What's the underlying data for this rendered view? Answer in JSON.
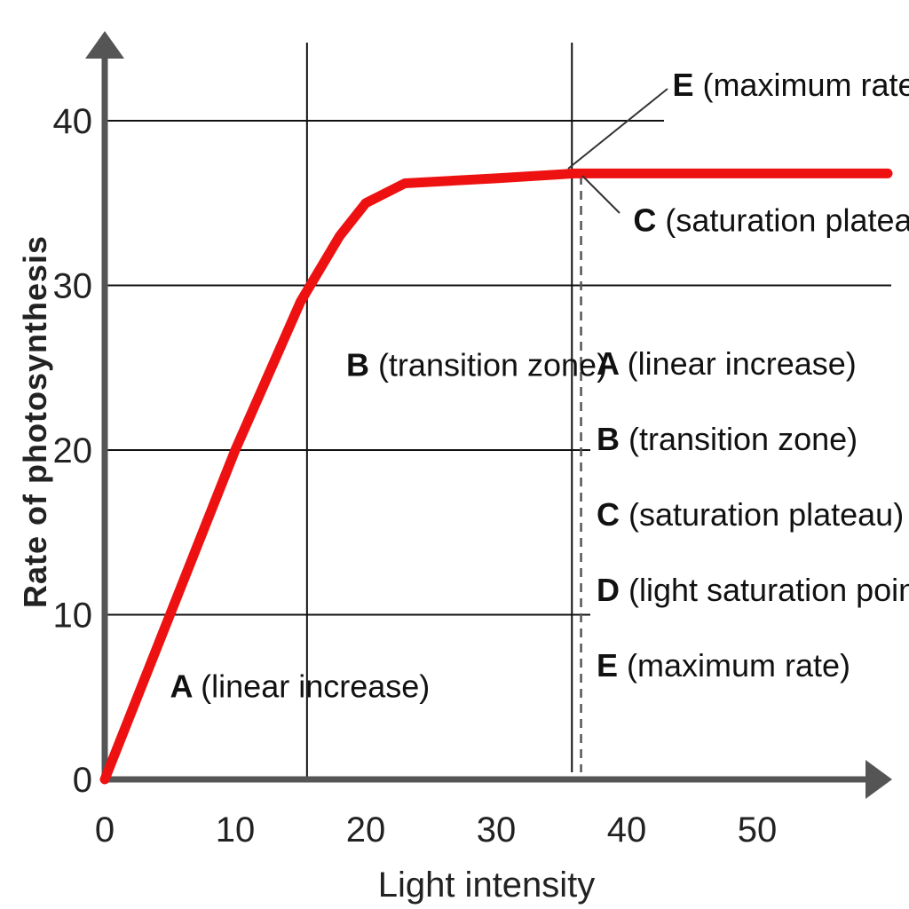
{
  "chart_data": {
    "type": "line",
    "xlabel": "Light intensity",
    "ylabel": "Rate of photosynthesis",
    "xlim": [
      0,
      60
    ],
    "ylim": [
      0,
      40
    ],
    "x_ticks": [
      "0",
      "10",
      "20",
      "30",
      "40",
      "50"
    ],
    "y_ticks": [
      "0",
      "10",
      "20",
      "30",
      "40"
    ],
    "grid": "horizontal",
    "line_color": "#ee1111",
    "series": [
      {
        "x": [
          0,
          5,
          10,
          15,
          18,
          20,
          23,
          30,
          36,
          45,
          60
        ],
        "y": [
          0,
          10,
          20,
          29,
          33,
          35,
          36.2,
          36.5,
          36.8,
          36.8,
          36.8
        ]
      }
    ],
    "reference_lines": [
      {
        "axis": "x",
        "value": 15.5,
        "style": "solid"
      },
      {
        "axis": "x",
        "value": 35.8,
        "style": "solid"
      },
      {
        "axis": "x",
        "value": 36.5,
        "style": "dashed"
      }
    ],
    "annotations": [
      {
        "letter": "A",
        "text": "(linear increase)",
        "x": 5,
        "y": 5
      },
      {
        "letter": "B",
        "text": "(transition zone)",
        "x": 18.5,
        "y": 24.5
      },
      {
        "letter": "C",
        "text": "(saturation plateau)",
        "x": 40.5,
        "y": 33.3
      },
      {
        "letter": "E",
        "text": "(maximum rate)",
        "x": 43.5,
        "y": 41.5
      }
    ],
    "legend": {
      "placement": "right",
      "items": [
        {
          "letter": "A",
          "text": "(linear increase)"
        },
        {
          "letter": "B",
          "text": "(transition zone)"
        },
        {
          "letter": "C",
          "text": "(saturation plateau)"
        },
        {
          "letter": "D",
          "text": "(light saturation point)"
        },
        {
          "letter": "E",
          "text": "(maximum rate)"
        }
      ]
    }
  }
}
